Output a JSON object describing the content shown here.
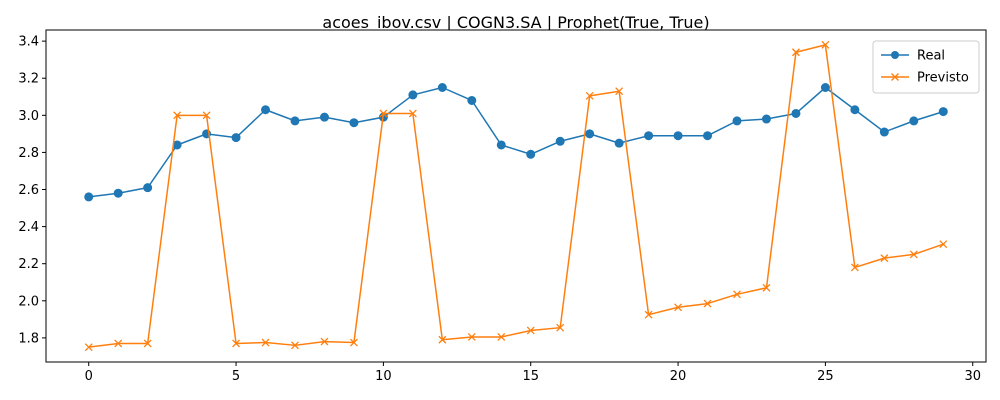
{
  "chart_data": {
    "type": "line",
    "title": "acoes_ibov.csv | COGN3.SA | Prophet(True, True)",
    "xlabel": "",
    "ylabel": "",
    "x": [
      0,
      1,
      2,
      3,
      4,
      5,
      6,
      7,
      8,
      9,
      10,
      11,
      12,
      13,
      14,
      15,
      16,
      17,
      18,
      19,
      20,
      21,
      22,
      23,
      24,
      25,
      26,
      27,
      28,
      29
    ],
    "xlim": [
      -1.45,
      30.45
    ],
    "ylim": [
      1.67,
      3.46
    ],
    "xticks": [
      0,
      5,
      10,
      15,
      20,
      25,
      30
    ],
    "xtick_labels": [
      "0",
      "5",
      "10",
      "15",
      "20",
      "25",
      "30"
    ],
    "yticks": [
      1.8,
      2.0,
      2.2,
      2.4,
      2.6,
      2.8,
      3.0,
      3.2,
      3.4
    ],
    "ytick_labels": [
      "1.8",
      "2.0",
      "2.2",
      "2.4",
      "2.6",
      "2.8",
      "3.0",
      "3.2",
      "3.4"
    ],
    "grid": false,
    "legend_position": "upper-right",
    "series": [
      {
        "name": "Real",
        "color": "#1f77b4",
        "marker": "circle",
        "values": [
          2.56,
          2.58,
          2.61,
          2.84,
          2.9,
          2.88,
          3.03,
          2.97,
          2.99,
          2.96,
          2.99,
          3.11,
          3.15,
          3.08,
          2.84,
          2.79,
          2.86,
          2.9,
          2.85,
          2.89,
          2.89,
          2.89,
          2.97,
          2.98,
          3.01,
          3.15,
          3.03,
          2.91,
          2.97,
          3.02
        ]
      },
      {
        "name": "Previsto",
        "color": "#ff7f0e",
        "marker": "x",
        "values": [
          1.75,
          1.77,
          1.77,
          3.0,
          3.0,
          1.77,
          1.775,
          1.76,
          1.78,
          1.775,
          3.01,
          3.01,
          1.79,
          1.805,
          1.805,
          1.84,
          1.855,
          3.105,
          3.13,
          1.925,
          1.965,
          1.985,
          2.035,
          2.07,
          3.34,
          3.38,
          2.18,
          2.23,
          2.25,
          2.305
        ]
      }
    ]
  }
}
